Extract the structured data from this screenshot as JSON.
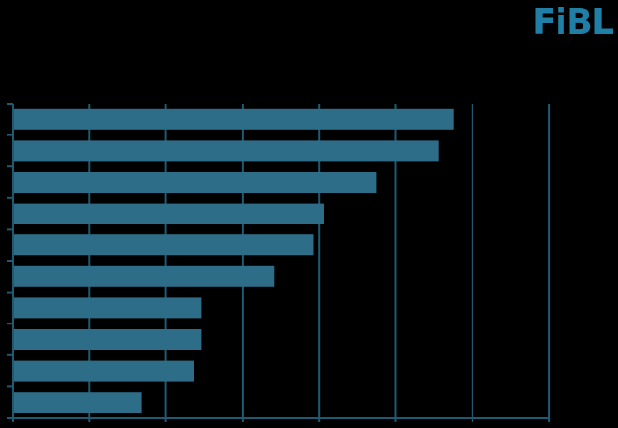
{
  "logo": {
    "text": "FiBL"
  },
  "colors": {
    "bar": "#2e6d87",
    "axis": "#1f5a73",
    "logo": "#1f7fa6",
    "background": "#000000"
  },
  "chart_data": {
    "type": "bar",
    "orientation": "horizontal",
    "title": "",
    "xlabel": "",
    "ylabel": "",
    "xlim": [
      0,
      7
    ],
    "grid": true,
    "legend": "none",
    "values": [
      5.75,
      5.56,
      4.75,
      4.06,
      3.92,
      3.42,
      2.46,
      2.46,
      2.37,
      1.68
    ]
  }
}
